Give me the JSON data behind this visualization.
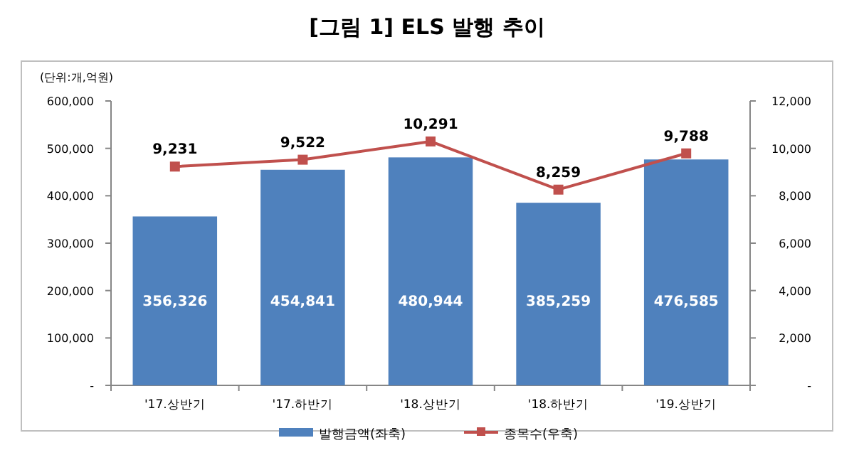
{
  "chart_data": {
    "type": "bar",
    "title": "[그림 1] ELS 발행 추이",
    "annotations": [
      "(단위:개,억원)"
    ],
    "categories": [
      "'17.상반기",
      "'17.하반기",
      "'18.상반기",
      "'18.하반기",
      "'19.상반기"
    ],
    "series": [
      {
        "name": "발행금액(좌축)",
        "color": "#4f81bd",
        "values": [
          356326,
          454841,
          480944,
          385259,
          476585
        ],
        "value_labels": [
          "356,326",
          "454,841",
          "480,944",
          "385,259",
          "476,585"
        ]
      },
      {
        "name": "종목수(우축)",
        "type": "line",
        "axis": "y2",
        "color": "#c0504d",
        "values": [
          9231,
          9522,
          10291,
          8259,
          9788
        ],
        "value_labels": [
          "9,231",
          "9,522",
          "10,291",
          "8,259",
          "9,788"
        ]
      }
    ],
    "ylim": [
      0,
      600000
    ],
    "yticks": [
      {
        "value": 0,
        "label": "-"
      },
      {
        "value": 100000,
        "label": "100,000"
      },
      {
        "value": 200000,
        "label": "200,000"
      },
      {
        "value": 300000,
        "label": "300,000"
      },
      {
        "value": 400000,
        "label": "400,000"
      },
      {
        "value": 500000,
        "label": "500,000"
      },
      {
        "value": 600000,
        "label": "600,000"
      }
    ],
    "y2lim": [
      0,
      12000
    ],
    "y2ticks": [
      {
        "value": 0,
        "label": "-"
      },
      {
        "value": 2000,
        "label": "2,000"
      },
      {
        "value": 4000,
        "label": "4,000"
      },
      {
        "value": 6000,
        "label": "6,000"
      },
      {
        "value": 8000,
        "label": "8,000"
      },
      {
        "value": 10000,
        "label": "10,000"
      },
      {
        "value": 12000,
        "label": "12,000"
      }
    ],
    "legend": "bottom",
    "marker": "square",
    "line_style": "solid"
  }
}
